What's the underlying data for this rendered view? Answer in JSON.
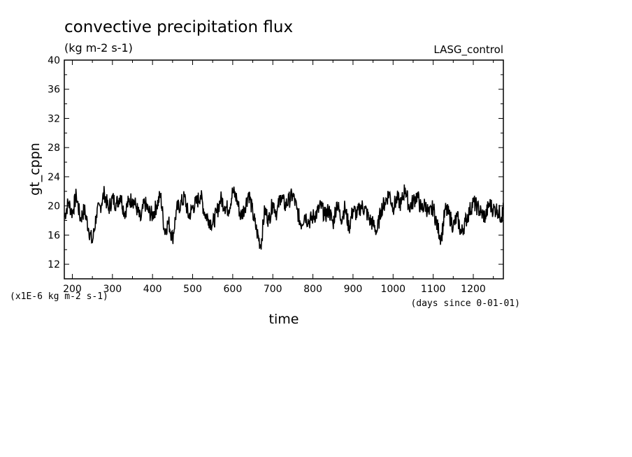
{
  "chart_data": {
    "type": "line",
    "title": "convective precipitation flux",
    "subtitle": "(kg m-2 s-1)",
    "experiment": "LASG_control",
    "xlabel": "time",
    "ylabel": "gt_cppn",
    "x_units_note": "(days since 0-01-01)",
    "y_scale_note": "(x1E-6 kg m-2 s-1)",
    "xlim": [
      180,
      1275
    ],
    "ylim": [
      10,
      40
    ],
    "x_ticks": [
      200,
      300,
      400,
      500,
      600,
      700,
      800,
      900,
      1000,
      1100,
      1200
    ],
    "x_tick_labels": [
      "200",
      "300",
      "400",
      "500",
      "600",
      "700",
      "800",
      "900",
      "1000",
      "1100",
      "1200"
    ],
    "y_ticks": [
      12,
      16,
      20,
      24,
      28,
      32,
      36,
      40
    ],
    "y_tick_labels": [
      "12",
      "16",
      "20",
      "24",
      "28",
      "32",
      "36",
      "40"
    ],
    "grid": false,
    "series": [
      {
        "x": [
          180,
          190,
          200,
          210,
          220,
          230,
          240,
          250,
          260,
          270,
          280,
          290,
          300,
          310,
          320,
          330,
          340,
          350,
          360,
          370,
          380,
          390,
          400,
          410,
          420,
          430,
          440,
          450,
          460,
          470,
          480,
          490,
          500,
          510,
          520,
          530,
          540,
          550,
          560,
          570,
          580,
          590,
          600,
          610,
          620,
          630,
          640,
          650,
          660,
          670,
          680,
          690,
          700,
          710,
          720,
          730,
          740,
          750,
          760,
          770,
          780,
          790,
          800,
          810,
          820,
          830,
          840,
          850,
          860,
          870,
          880,
          890,
          900,
          910,
          920,
          930,
          940,
          950,
          960,
          970,
          980,
          990,
          1000,
          1010,
          1020,
          1030,
          1040,
          1050,
          1060,
          1070,
          1080,
          1090,
          1100,
          1110,
          1120,
          1130,
          1140,
          1150,
          1160,
          1170,
          1180,
          1190,
          1200,
          1210,
          1220,
          1230,
          1240,
          1250,
          1260,
          1270,
          1275
        ],
        "y": [
          18.5,
          20.5,
          19,
          21.5,
          18.2,
          19.5,
          17,
          15,
          18.8,
          20,
          21.8,
          19.5,
          21,
          20.3,
          21.5,
          19,
          20.5,
          21,
          19.8,
          18,
          20.5,
          19.2,
          18.7,
          20,
          21.5,
          16.5,
          17.8,
          15.5,
          19.5,
          20.2,
          21.2,
          18.5,
          19.8,
          20.5,
          21.5,
          19,
          18.2,
          17.5,
          19,
          21,
          20,
          19.5,
          22,
          21,
          18.5,
          19.8,
          21.8,
          19,
          16.5,
          14.5,
          19.5,
          18,
          20.5,
          19,
          21.5,
          20,
          20.8,
          21.5,
          19.5,
          17.5,
          18.8,
          17.8,
          18.5,
          19,
          20,
          18.6,
          19.5,
          17.5,
          20.5,
          18.2,
          19.8,
          17,
          19.5,
          18.8,
          20,
          19.6,
          18.2,
          17.5,
          16.5,
          19.5,
          20.5,
          21.8,
          19.8,
          21,
          20.2,
          22.5,
          19.8,
          20.6,
          21.5,
          19.5,
          20.2,
          18.8,
          19.8,
          17.2,
          15.5,
          19.5,
          18.8,
          17.2,
          18.5,
          16.2,
          17.8,
          19.2,
          20.5,
          19.8,
          19,
          18.5,
          20.3,
          19.5,
          19.5,
          18.5,
          19.5
        ]
      }
    ]
  }
}
